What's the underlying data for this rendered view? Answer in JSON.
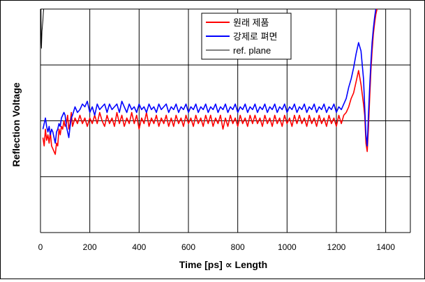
{
  "chart_data": {
    "type": "line",
    "xlabel": "Time [ps]  ∝  Length",
    "ylabel": "Reflection Voltage",
    "xlim": [
      0,
      1500
    ],
    "ylim": [
      -4,
      4
    ],
    "x_ticks": [
      0,
      200,
      400,
      600,
      800,
      1000,
      1200,
      1400
    ],
    "x_gridlines": [
      0,
      200,
      400,
      600,
      800,
      1000,
      1200,
      1400,
      1500
    ],
    "y_gridlines": [
      -4,
      -2,
      0,
      2,
      4
    ],
    "grid": true,
    "legend_position": "top-center",
    "series": [
      {
        "name": "원래 제품",
        "color": "#ff0000",
        "points": [
          [
            10,
            -0.6
          ],
          [
            15,
            -0.9
          ],
          [
            20,
            -0.3
          ],
          [
            25,
            -0.7
          ],
          [
            30,
            -0.5
          ],
          [
            35,
            -0.8
          ],
          [
            40,
            -0.4
          ],
          [
            45,
            -0.9
          ],
          [
            50,
            -1.0
          ],
          [
            55,
            -1.1
          ],
          [
            60,
            -1.2
          ],
          [
            65,
            -0.8
          ],
          [
            70,
            -0.9
          ],
          [
            75,
            -0.3
          ],
          [
            80,
            -0.5
          ],
          [
            85,
            -0.2
          ],
          [
            90,
            -0.3
          ],
          [
            95,
            0.0
          ],
          [
            100,
            -0.2
          ],
          [
            105,
            -0.1
          ],
          [
            110,
            0.2
          ],
          [
            115,
            -0.3
          ],
          [
            120,
            -0.1
          ],
          [
            125,
            0.3
          ],
          [
            130,
            -0.2
          ],
          [
            140,
            0.1
          ],
          [
            150,
            -0.1
          ],
          [
            160,
            0.2
          ],
          [
            170,
            -0.1
          ],
          [
            180,
            0.1
          ],
          [
            190,
            -0.2
          ],
          [
            200,
            0.1
          ],
          [
            210,
            -0.1
          ],
          [
            220,
            0.2
          ],
          [
            230,
            -0.1
          ],
          [
            240,
            0.3
          ],
          [
            250,
            0.0
          ],
          [
            260,
            -0.2
          ],
          [
            270,
            0.2
          ],
          [
            280,
            -0.1
          ],
          [
            290,
            0.1
          ],
          [
            300,
            -0.2
          ],
          [
            310,
            0.3
          ],
          [
            320,
            -0.1
          ],
          [
            330,
            0.2
          ],
          [
            340,
            -0.2
          ],
          [
            350,
            0.1
          ],
          [
            360,
            -0.1
          ],
          [
            370,
            0.3
          ],
          [
            380,
            -0.1
          ],
          [
            390,
            0.2
          ],
          [
            400,
            -0.3
          ],
          [
            410,
            0.1
          ],
          [
            420,
            -0.1
          ],
          [
            430,
            0.3
          ],
          [
            440,
            -0.2
          ],
          [
            450,
            0.1
          ],
          [
            460,
            -0.1
          ],
          [
            470,
            0.2
          ],
          [
            480,
            -0.2
          ],
          [
            490,
            0.1
          ],
          [
            500,
            -0.1
          ],
          [
            510,
            0.2
          ],
          [
            520,
            -0.2
          ],
          [
            530,
            0.1
          ],
          [
            540,
            -0.2
          ],
          [
            550,
            0.2
          ],
          [
            560,
            -0.1
          ],
          [
            570,
            0.1
          ],
          [
            580,
            -0.2
          ],
          [
            590,
            0.2
          ],
          [
            600,
            -0.1
          ],
          [
            610,
            0.1
          ],
          [
            620,
            -0.2
          ],
          [
            630,
            0.2
          ],
          [
            640,
            -0.1
          ],
          [
            650,
            0.1
          ],
          [
            660,
            -0.2
          ],
          [
            670,
            0.2
          ],
          [
            680,
            -0.1
          ],
          [
            690,
            0.2
          ],
          [
            700,
            -0.2
          ],
          [
            710,
            0.1
          ],
          [
            720,
            -0.1
          ],
          [
            730,
            0.2
          ],
          [
            740,
            -0.3
          ],
          [
            750,
            0.1
          ],
          [
            760,
            -0.2
          ],
          [
            770,
            0.2
          ],
          [
            780,
            -0.1
          ],
          [
            790,
            0.1
          ],
          [
            800,
            -0.2
          ],
          [
            810,
            0.2
          ],
          [
            820,
            -0.1
          ],
          [
            830,
            0.1
          ],
          [
            840,
            -0.2
          ],
          [
            850,
            0.2
          ],
          [
            860,
            -0.1
          ],
          [
            870,
            0.2
          ],
          [
            880,
            -0.1
          ],
          [
            890,
            0.1
          ],
          [
            900,
            -0.2
          ],
          [
            910,
            0.2
          ],
          [
            920,
            -0.1
          ],
          [
            930,
            0.1
          ],
          [
            940,
            -0.2
          ],
          [
            950,
            0.2
          ],
          [
            960,
            -0.1
          ],
          [
            970,
            0.1
          ],
          [
            980,
            -0.2
          ],
          [
            990,
            0.2
          ],
          [
            1000,
            -0.1
          ],
          [
            1010,
            0.1
          ],
          [
            1020,
            -0.2
          ],
          [
            1030,
            0.2
          ],
          [
            1040,
            -0.1
          ],
          [
            1050,
            0.2
          ],
          [
            1060,
            -0.1
          ],
          [
            1070,
            0.1
          ],
          [
            1080,
            -0.2
          ],
          [
            1090,
            0.2
          ],
          [
            1100,
            -0.1
          ],
          [
            1110,
            0.1
          ],
          [
            1120,
            -0.2
          ],
          [
            1130,
            0.2
          ],
          [
            1140,
            -0.1
          ],
          [
            1150,
            0.1
          ],
          [
            1160,
            -0.2
          ],
          [
            1170,
            0.2
          ],
          [
            1180,
            -0.1
          ],
          [
            1190,
            0.1
          ],
          [
            1200,
            -0.2
          ],
          [
            1210,
            0.2
          ],
          [
            1220,
            -0.1
          ],
          [
            1230,
            0.2
          ],
          [
            1240,
            0.3
          ],
          [
            1250,
            0.5
          ],
          [
            1260,
            0.8
          ],
          [
            1270,
            1.0
          ],
          [
            1280,
            1.4
          ],
          [
            1290,
            1.8
          ],
          [
            1300,
            1.3
          ],
          [
            1310,
            0.6
          ],
          [
            1315,
            0.2
          ],
          [
            1320,
            -0.8
          ],
          [
            1325,
            -1.1
          ],
          [
            1330,
            -0.3
          ],
          [
            1335,
            0.8
          ],
          [
            1340,
            1.8
          ],
          [
            1345,
            2.5
          ],
          [
            1350,
            3.1
          ],
          [
            1355,
            3.5
          ],
          [
            1360,
            3.8
          ],
          [
            1365,
            4.0
          ]
        ]
      },
      {
        "name": "강제로 펴면",
        "color": "#0000ff",
        "points": [
          [
            10,
            -0.3
          ],
          [
            15,
            -0.1
          ],
          [
            20,
            0.1
          ],
          [
            25,
            -0.2
          ],
          [
            30,
            -0.4
          ],
          [
            35,
            -0.2
          ],
          [
            40,
            -0.5
          ],
          [
            45,
            -0.3
          ],
          [
            50,
            -0.4
          ],
          [
            55,
            -0.6
          ],
          [
            60,
            -0.8
          ],
          [
            65,
            -0.4
          ],
          [
            70,
            -0.3
          ],
          [
            75,
            -0.1
          ],
          [
            80,
            -0.2
          ],
          [
            85,
            0.1
          ],
          [
            90,
            0.2
          ],
          [
            95,
            0.3
          ],
          [
            100,
            0.2
          ],
          [
            105,
            -0.2
          ],
          [
            110,
            -0.4
          ],
          [
            115,
            -0.6
          ],
          [
            120,
            -0.2
          ],
          [
            125,
            0.1
          ],
          [
            130,
            0.2
          ],
          [
            140,
            0.5
          ],
          [
            150,
            0.3
          ],
          [
            160,
            0.4
          ],
          [
            170,
            0.6
          ],
          [
            180,
            0.5
          ],
          [
            190,
            0.7
          ],
          [
            200,
            0.3
          ],
          [
            210,
            0.5
          ],
          [
            220,
            0.2
          ],
          [
            230,
            0.6
          ],
          [
            240,
            0.4
          ],
          [
            250,
            0.5
          ],
          [
            260,
            0.6
          ],
          [
            270,
            0.3
          ],
          [
            280,
            0.6
          ],
          [
            290,
            0.4
          ],
          [
            300,
            0.5
          ],
          [
            310,
            0.6
          ],
          [
            320,
            0.3
          ],
          [
            330,
            0.7
          ],
          [
            340,
            0.5
          ],
          [
            350,
            0.3
          ],
          [
            360,
            0.6
          ],
          [
            370,
            0.4
          ],
          [
            380,
            0.5
          ],
          [
            390,
            0.3
          ],
          [
            400,
            0.6
          ],
          [
            410,
            0.4
          ],
          [
            420,
            0.5
          ],
          [
            430,
            0.3
          ],
          [
            440,
            0.6
          ],
          [
            450,
            0.4
          ],
          [
            460,
            0.5
          ],
          [
            470,
            0.3
          ],
          [
            480,
            0.6
          ],
          [
            490,
            0.4
          ],
          [
            500,
            0.5
          ],
          [
            510,
            0.6
          ],
          [
            520,
            0.3
          ],
          [
            530,
            0.5
          ],
          [
            540,
            0.4
          ],
          [
            550,
            0.6
          ],
          [
            560,
            0.3
          ],
          [
            570,
            0.5
          ],
          [
            580,
            0.4
          ],
          [
            590,
            0.6
          ],
          [
            600,
            0.3
          ],
          [
            610,
            0.5
          ],
          [
            620,
            0.4
          ],
          [
            630,
            0.6
          ],
          [
            640,
            0.3
          ],
          [
            650,
            0.5
          ],
          [
            660,
            0.4
          ],
          [
            670,
            0.6
          ],
          [
            680,
            0.3
          ],
          [
            690,
            0.5
          ],
          [
            700,
            0.4
          ],
          [
            710,
            0.6
          ],
          [
            720,
            0.3
          ],
          [
            730,
            0.5
          ],
          [
            740,
            0.4
          ],
          [
            750,
            0.6
          ],
          [
            760,
            0.3
          ],
          [
            770,
            0.5
          ],
          [
            780,
            0.4
          ],
          [
            790,
            0.6
          ],
          [
            800,
            0.3
          ],
          [
            810,
            0.5
          ],
          [
            820,
            0.4
          ],
          [
            830,
            0.6
          ],
          [
            840,
            0.3
          ],
          [
            850,
            0.5
          ],
          [
            860,
            0.4
          ],
          [
            870,
            0.6
          ],
          [
            880,
            0.3
          ],
          [
            890,
            0.5
          ],
          [
            900,
            0.4
          ],
          [
            910,
            0.6
          ],
          [
            920,
            0.3
          ],
          [
            930,
            0.5
          ],
          [
            940,
            0.4
          ],
          [
            950,
            0.6
          ],
          [
            960,
            0.3
          ],
          [
            970,
            0.5
          ],
          [
            980,
            0.4
          ],
          [
            990,
            0.6
          ],
          [
            1000,
            0.3
          ],
          [
            1010,
            0.5
          ],
          [
            1020,
            0.4
          ],
          [
            1030,
            0.6
          ],
          [
            1040,
            0.3
          ],
          [
            1050,
            0.5
          ],
          [
            1060,
            0.4
          ],
          [
            1070,
            0.6
          ],
          [
            1080,
            0.3
          ],
          [
            1090,
            0.5
          ],
          [
            1100,
            0.4
          ],
          [
            1110,
            0.6
          ],
          [
            1120,
            0.3
          ],
          [
            1130,
            0.5
          ],
          [
            1140,
            0.4
          ],
          [
            1150,
            0.6
          ],
          [
            1160,
            0.3
          ],
          [
            1170,
            0.5
          ],
          [
            1180,
            0.4
          ],
          [
            1190,
            0.6
          ],
          [
            1200,
            0.3
          ],
          [
            1210,
            0.5
          ],
          [
            1220,
            0.4
          ],
          [
            1230,
            0.6
          ],
          [
            1240,
            0.8
          ],
          [
            1250,
            1.2
          ],
          [
            1260,
            1.5
          ],
          [
            1270,
            1.9
          ],
          [
            1280,
            2.4
          ],
          [
            1290,
            2.8
          ],
          [
            1300,
            2.5
          ],
          [
            1310,
            1.5
          ],
          [
            1315,
            0.5
          ],
          [
            1320,
            -0.5
          ],
          [
            1325,
            -0.9
          ],
          [
            1330,
            0.2
          ],
          [
            1335,
            1.2
          ],
          [
            1340,
            2.1
          ],
          [
            1345,
            2.8
          ],
          [
            1350,
            3.3
          ],
          [
            1355,
            3.7
          ],
          [
            1360,
            4.0
          ]
        ]
      },
      {
        "name": "ref. plane",
        "color": "#000000",
        "points": [
          [
            0,
            4
          ],
          [
            2,
            4
          ],
          [
            3,
            2.8
          ],
          [
            4,
            2.6
          ],
          [
            6,
            3.2
          ],
          [
            8,
            3.4
          ],
          [
            10,
            3.6
          ],
          [
            12,
            3.9
          ],
          [
            13,
            4
          ]
        ]
      }
    ]
  }
}
